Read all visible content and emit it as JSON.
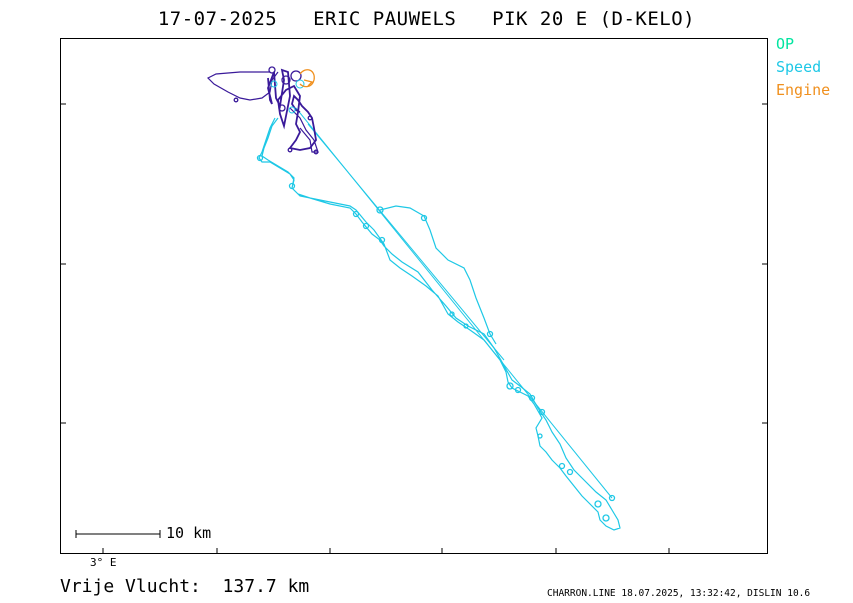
{
  "title": "17-07-2025   ERIC PAUWELS   PIK 20 E (D-KELO)",
  "legend": [
    {
      "label": "OP",
      "color": "#00e5a0"
    },
    {
      "label": "Speed",
      "color": "#1ec8e6"
    },
    {
      "label": "Engine",
      "color": "#f0901e"
    }
  ],
  "scale_bar": {
    "label": "10 km"
  },
  "axis": {
    "longitude_label": "3° E"
  },
  "distance_text": "Vrije Vlucht:  137.7 km",
  "footer": "CHARRON.LINE 18.07.2025, 13:32:42, DISLIN 10.6",
  "colors": {
    "track_dark": "#3a1a9a",
    "track_speed": "#1ec8e6",
    "engine": "#f0901e",
    "frame": "#000000"
  }
}
